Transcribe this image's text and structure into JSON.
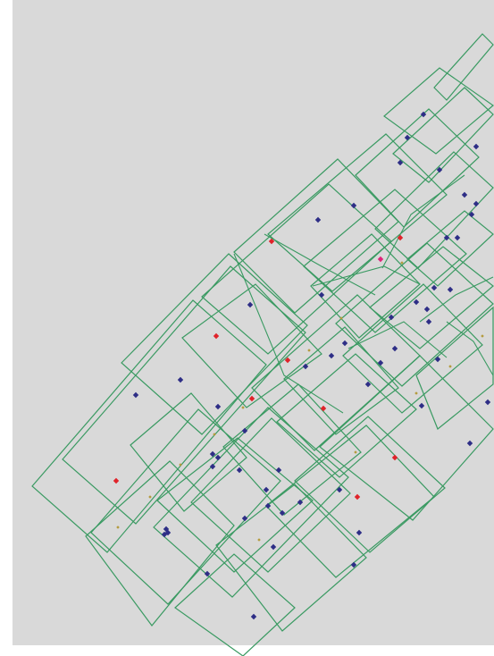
{
  "map": {
    "colors": {
      "background": "#d9d9d9",
      "frame": "#ffffff",
      "footprint_outline": "#3a9a62",
      "station_primary": "#2e2e86",
      "station_secondary": "#e0232a",
      "station_tertiary": "#b39a3c",
      "station_highlight": "#e0247a"
    },
    "legend": null,
    "marker_categories": [
      "primary",
      "secondary",
      "tertiary",
      "highlight"
    ]
  }
}
